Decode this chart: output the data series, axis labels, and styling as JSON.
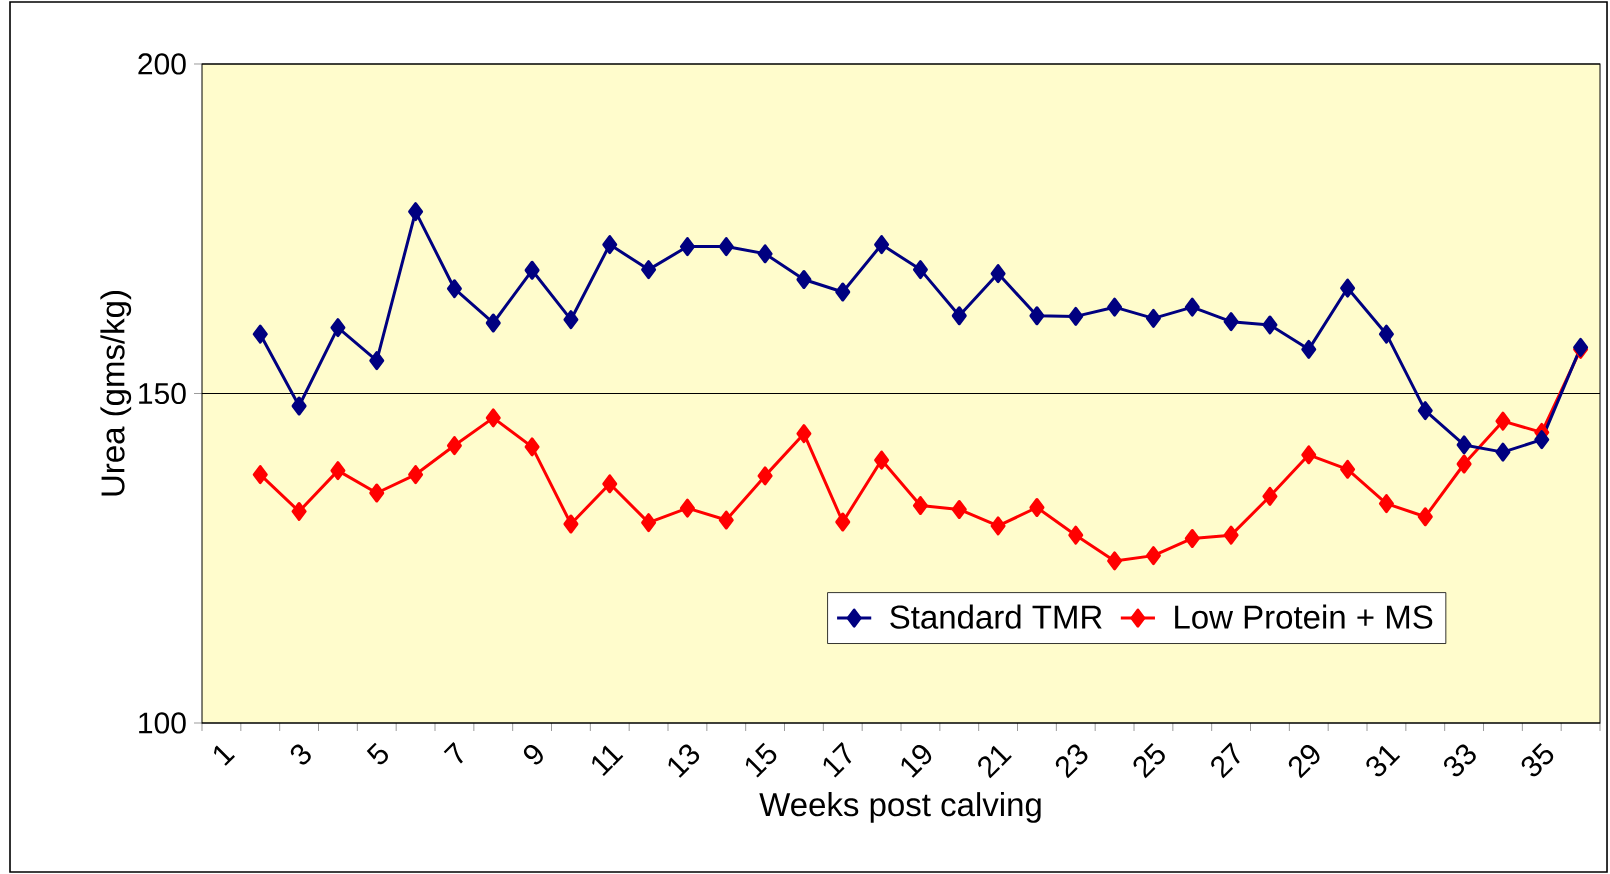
{
  "chart_data": {
    "type": "line",
    "xlabel": "Weeks post calving",
    "ylabel": "Urea (gms/kg)",
    "categories": [
      "1",
      null,
      "3",
      null,
      "5",
      null,
      "7",
      null,
      "9",
      null,
      "11",
      null,
      "13",
      null,
      "15",
      null,
      "17",
      null,
      "19",
      null,
      "21",
      null,
      "23",
      null,
      "25",
      null,
      "27",
      null,
      "29",
      null,
      "31",
      null,
      "33",
      null,
      "35",
      null
    ],
    "series": [
      {
        "name": "Standard TMR",
        "color": "#000080",
        "values": [
          null,
          159.0,
          148.1,
          160.0,
          155.0,
          177.6,
          165.9,
          160.7,
          168.7,
          161.2,
          172.6,
          168.8,
          172.3,
          172.3,
          171.2,
          167.3,
          165.4,
          172.6,
          168.8,
          161.8,
          168.2,
          161.8,
          161.7,
          163.1,
          161.4,
          163.1,
          160.9,
          160.4,
          156.7,
          166.0,
          159.0,
          147.4,
          142.2,
          141.1,
          143.0,
          157.0
        ]
      },
      {
        "name": "Low Protein + MS",
        "color": "#ff0000",
        "values": [
          null,
          137.7,
          132.1,
          138.3,
          134.9,
          137.7,
          142.1,
          146.3,
          141.9,
          130.2,
          136.3,
          130.4,
          132.6,
          130.8,
          137.5,
          143.9,
          130.5,
          139.9,
          133.0,
          132.4,
          129.9,
          132.7,
          128.5,
          124.6,
          125.4,
          128.0,
          128.5,
          134.4,
          140.7,
          138.5,
          133.3,
          131.3,
          139.3,
          145.8,
          144.1,
          156.7
        ]
      }
    ],
    "ylim": [
      100,
      200
    ],
    "yticks": [
      100,
      150,
      200
    ],
    "grid": "y",
    "legend": "bottom right",
    "marker": "diamond",
    "line_style": "solid"
  }
}
